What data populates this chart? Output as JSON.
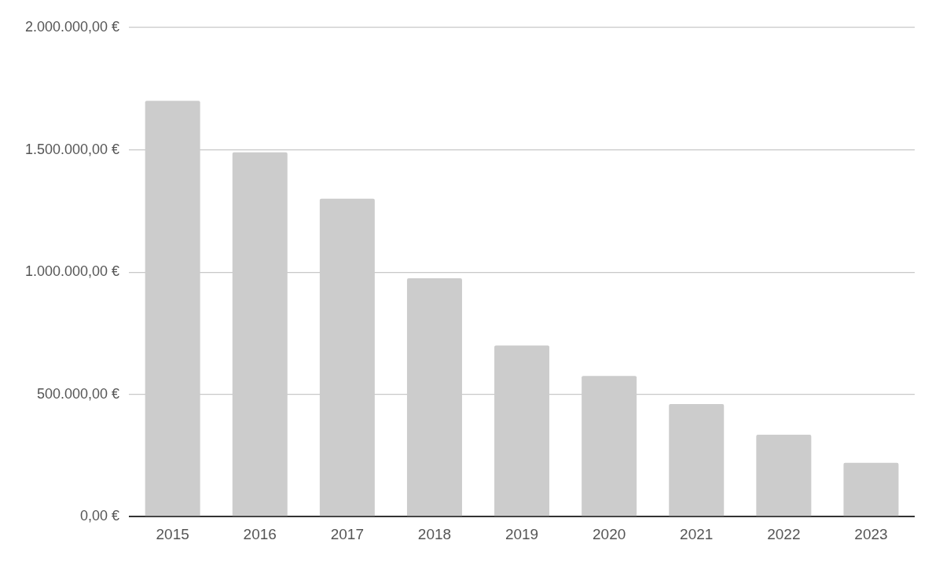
{
  "chart_data": {
    "type": "bar",
    "categories": [
      "2015",
      "2016",
      "2017",
      "2018",
      "2019",
      "2020",
      "2021",
      "2022",
      "2023"
    ],
    "values": [
      1700000,
      1490000,
      1300000,
      975000,
      700000,
      575000,
      460000,
      335000,
      220000
    ],
    "color": "#cccccc",
    "ylim": [
      0,
      2000000
    ],
    "yticks": [
      {
        "value": 0,
        "label": "0,00 €"
      },
      {
        "value": 500000,
        "label": "500.000,00 €"
      },
      {
        "value": 1000000,
        "label": "1.000.000,00 €"
      },
      {
        "value": 1500000,
        "label": "1.500.000,00 €"
      },
      {
        "value": 2000000,
        "label": "2.000.000,00 €"
      }
    ],
    "grid": "y"
  }
}
